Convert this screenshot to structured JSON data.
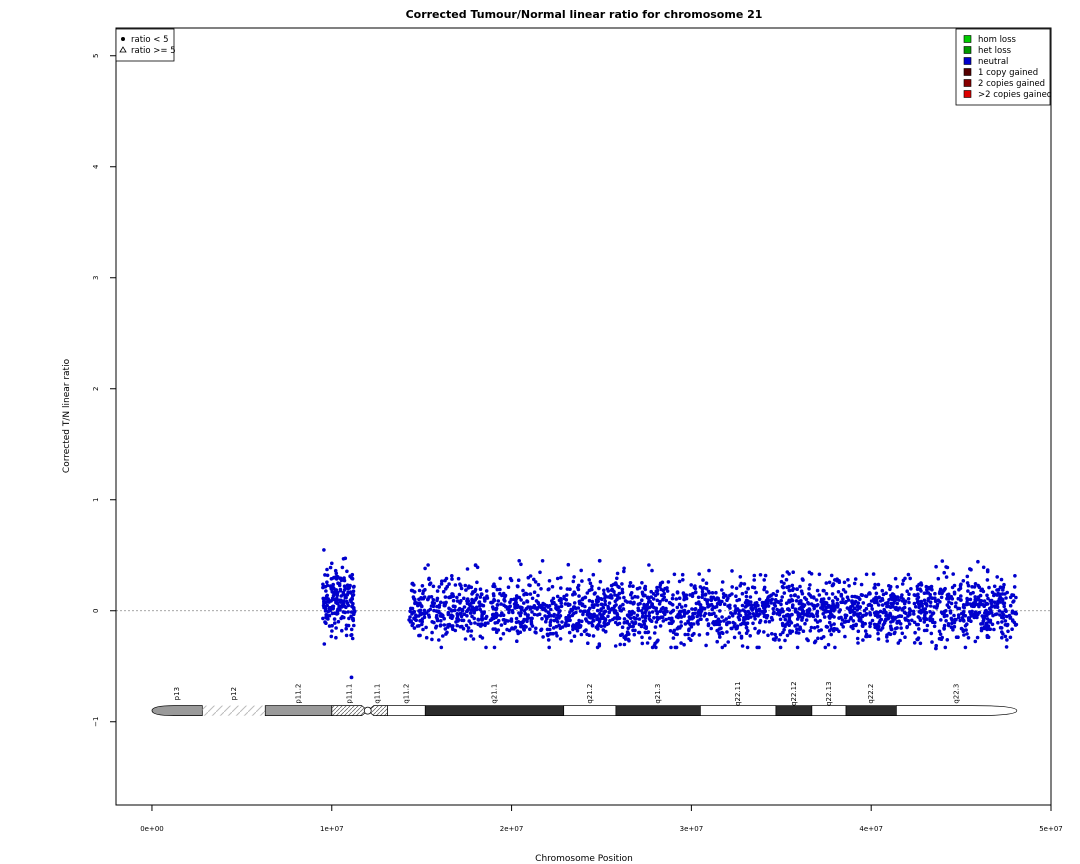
{
  "chart_data": {
    "type": "scatter",
    "title": "Corrected Tumour/Normal linear ratio for chromosome  21",
    "xlabel": "Chromosome Position",
    "ylabel": "Corrected T/N linear ratio",
    "xlim": [
      -2000000,
      50000000
    ],
    "ylim": [
      -1.75,
      5.25
    ],
    "x_ticks": [
      0,
      10000000,
      20000000,
      30000000,
      40000000,
      50000000
    ],
    "x_tick_labels": [
      "0e+00",
      "1e+07",
      "2e+07",
      "3e+07",
      "4e+07",
      "5e+07"
    ],
    "y_ticks": [
      -1,
      0,
      1,
      2,
      3,
      4,
      5
    ],
    "y_tick_labels": [
      "−1",
      "0",
      "1",
      "2",
      "3",
      "4",
      "5"
    ],
    "reference_line_y": 0,
    "point_color": "#0000cc",
    "series": [
      {
        "state": "neutral",
        "marker": "circle",
        "regions": [
          {
            "x_start": 9500000,
            "x_end": 11300000,
            "y_min": -0.3,
            "y_max": 0.6,
            "approx_count": 190
          },
          {
            "x_start": 14300000,
            "x_end": 48100000,
            "y_min": -0.33,
            "y_max": 0.45,
            "approx_count": 2400
          }
        ],
        "notable_points": [
          {
            "x": 11100000,
            "y": -0.6
          },
          {
            "x": 24900000,
            "y": 0.45
          },
          {
            "x": 43600000,
            "y": -0.34
          },
          {
            "x": 18000000,
            "y": 0.41
          }
        ]
      }
    ],
    "marker_legend": {
      "position": "top-left",
      "entries": [
        {
          "label": "ratio < 5",
          "symbol": "filled-circle"
        },
        {
          "label": "ratio >= 5",
          "symbol": "open-triangle"
        }
      ]
    },
    "state_legend": {
      "position": "top-right",
      "entries": [
        {
          "label": "hom loss",
          "color": "#00cc00"
        },
        {
          "label": "het loss",
          "color": "#009900"
        },
        {
          "label": "neutral",
          "color": "#0000cc"
        },
        {
          "label": "1 copy gained",
          "color": "#550000"
        },
        {
          "label": "2 copies gained",
          "color": "#880000"
        },
        {
          "label": ">2 copies gained",
          "color": "#dd0000"
        }
      ]
    },
    "ideogram": {
      "y_center": -0.9,
      "centromere": 12000000,
      "bands": [
        {
          "name": "p13",
          "start": 0,
          "end": 2800000,
          "stain": "gvar"
        },
        {
          "name": "p12",
          "start": 2800000,
          "end": 6300000,
          "stain": "stalk"
        },
        {
          "name": "p11.2",
          "start": 6300000,
          "end": 10000000,
          "stain": "gvar"
        },
        {
          "name": "p11.1",
          "start": 10000000,
          "end": 12000000,
          "stain": "acen"
        },
        {
          "name": "q11.1",
          "start": 12000000,
          "end": 13100000,
          "stain": "acen"
        },
        {
          "name": "q11.2",
          "start": 13100000,
          "end": 15200000,
          "stain": "gneg"
        },
        {
          "name": "q21.1",
          "start": 15200000,
          "end": 22900000,
          "stain": "gpos100"
        },
        {
          "name": "q21.2",
          "start": 22900000,
          "end": 25800000,
          "stain": "gneg"
        },
        {
          "name": "q21.3",
          "start": 25800000,
          "end": 30500000,
          "stain": "gpos100"
        },
        {
          "name": "q22.11",
          "start": 30500000,
          "end": 34700000,
          "stain": "gneg"
        },
        {
          "name": "q22.12",
          "start": 34700000,
          "end": 36700000,
          "stain": "gpos100"
        },
        {
          "name": "q22.13",
          "start": 36700000,
          "end": 38600000,
          "stain": "gneg"
        },
        {
          "name": "q22.2",
          "start": 38600000,
          "end": 41400000,
          "stain": "gpos100"
        },
        {
          "name": "q22.3",
          "start": 41400000,
          "end": 48100000,
          "stain": "gneg"
        }
      ]
    }
  }
}
